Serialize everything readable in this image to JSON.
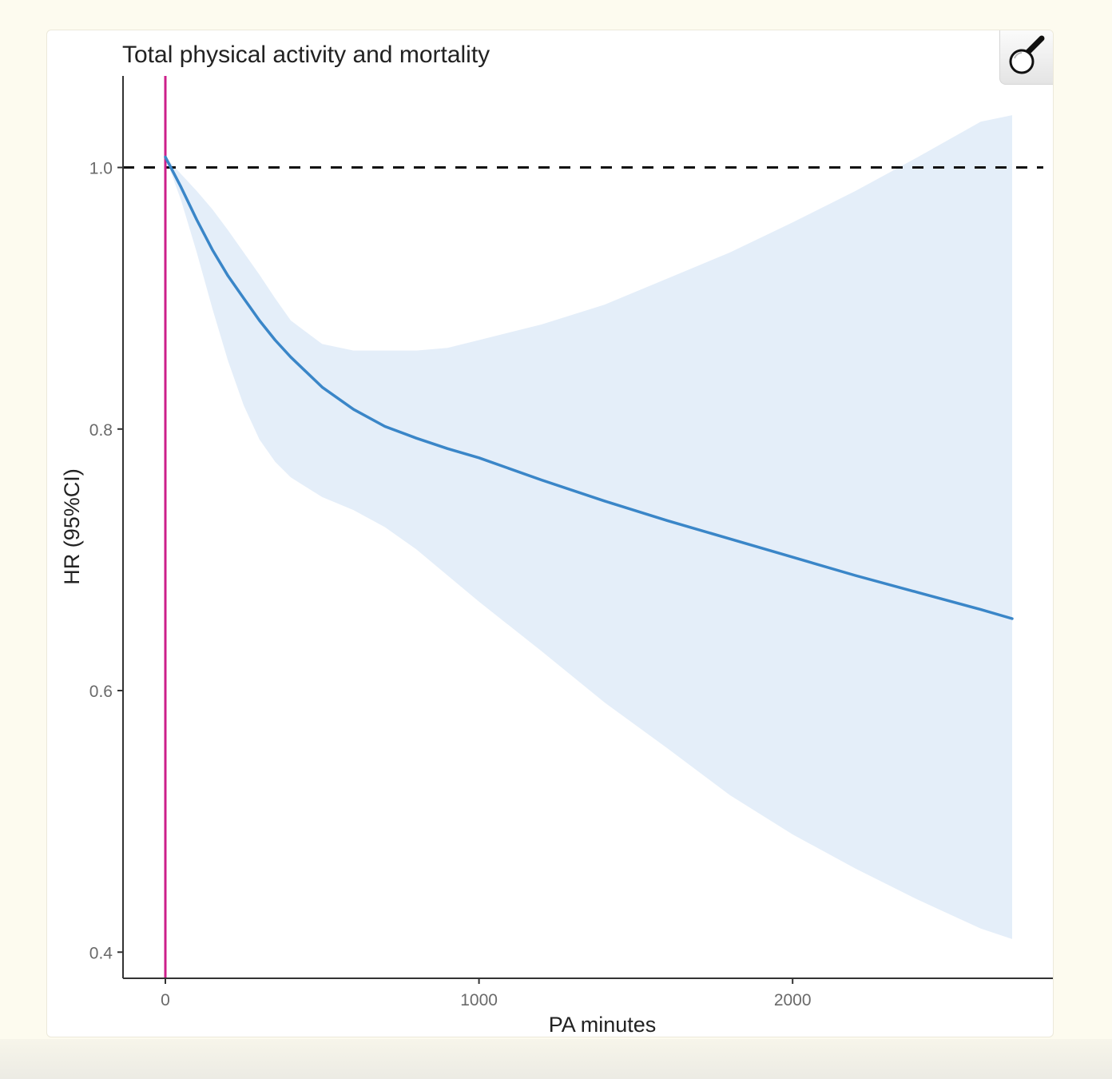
{
  "figure": {
    "zoom_icon": "magnifier-icon"
  },
  "chart_data": {
    "type": "line",
    "title": "Total physical activity and mortality",
    "xlabel": "PA minutes",
    "ylabel": "HR (95%CI)",
    "xlim": [
      -135,
      2835
    ],
    "ylim": [
      0.38,
      1.07
    ],
    "xticks": [
      0,
      1000,
      2000
    ],
    "xtick_labels": [
      "0",
      "1000",
      "2000"
    ],
    "yticks": [
      0.4,
      0.6,
      0.8,
      1.0
    ],
    "ytick_labels": [
      "0.4",
      "0.6",
      "0.8",
      "1.0"
    ],
    "grid": false,
    "reference_lines": [
      {
        "orientation": "horizontal",
        "value": 1.0,
        "style": "dashed",
        "color": "#111111"
      },
      {
        "orientation": "vertical",
        "value": 0,
        "style": "solid",
        "color": "#cc1f8a"
      }
    ],
    "series": [
      {
        "name": "HR",
        "color": "#3a86c8",
        "band_color": "#e4eef9",
        "x": [
          0,
          50,
          100,
          150,
          200,
          250,
          300,
          350,
          400,
          500,
          600,
          700,
          800,
          900,
          1000,
          1200,
          1400,
          1600,
          1800,
          2000,
          2200,
          2400,
          2600,
          2700
        ],
        "y": [
          1.008,
          0.985,
          0.96,
          0.937,
          0.917,
          0.9,
          0.883,
          0.868,
          0.855,
          0.832,
          0.815,
          0.802,
          0.793,
          0.785,
          0.778,
          0.761,
          0.745,
          0.73,
          0.716,
          0.702,
          0.688,
          0.675,
          0.662,
          0.655
        ],
        "lower": [
          1.008,
          0.975,
          0.935,
          0.892,
          0.852,
          0.818,
          0.792,
          0.775,
          0.763,
          0.748,
          0.738,
          0.725,
          0.708,
          0.688,
          0.668,
          0.63,
          0.591,
          0.556,
          0.52,
          0.49,
          0.464,
          0.44,
          0.418,
          0.41
        ],
        "upper": [
          1.008,
          0.995,
          0.982,
          0.968,
          0.952,
          0.935,
          0.918,
          0.9,
          0.883,
          0.865,
          0.86,
          0.86,
          0.86,
          0.862,
          0.868,
          0.88,
          0.895,
          0.915,
          0.935,
          0.958,
          0.982,
          1.008,
          1.035,
          1.04
        ]
      }
    ]
  }
}
